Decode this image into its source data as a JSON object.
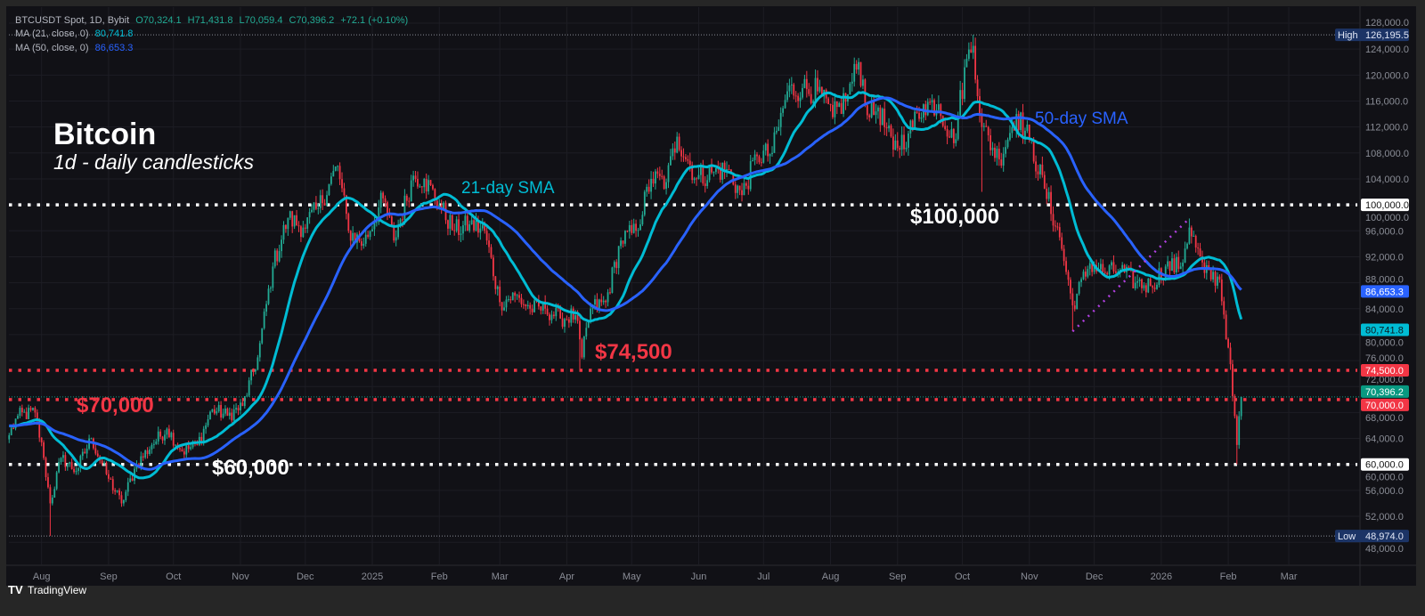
{
  "legend": {
    "symbol": "BTCUSDT Spot, 1D, Bybit",
    "open": "O70,324.1",
    "high": "H71,431.8",
    "low": "L70,059.4",
    "close": "C70,396.2",
    "change": "+72.1 (+0.10%)",
    "ma21_label": "MA (21, close, 0)",
    "ma21_value": "80,741.8",
    "ma50_label": "MA (50, close, 0)",
    "ma50_value": "86,653.3"
  },
  "footer": {
    "brand": "TradingView"
  },
  "colors": {
    "background": "#111116",
    "up": "#22ab94",
    "down": "#f23645",
    "ma21": "#00bcd4",
    "ma50": "#2962ff",
    "support_white": "#ffffff",
    "support_red": "#f23645",
    "trendline": "#9c27b0"
  },
  "chart_data": {
    "type": "candlestick",
    "title": "Bitcoin",
    "subtitle": "1d - daily candlesticks",
    "ylim": [
      46000,
      130000
    ],
    "y_ticks": [
      "128,000.0",
      "124,000.0",
      "120,000.0",
      "116,000.0",
      "112,000.0",
      "108,000.0",
      "104,000.0",
      "100,000.0",
      "96,000.0",
      "92,000.0",
      "88,000.0",
      "84,000.0",
      "80,000.0",
      "76,000.0",
      "72,000.0",
      "68,000.0",
      "64,000.0",
      "60,000.0",
      "56,000.0",
      "52,000.0",
      "48,000.0"
    ],
    "x_ticks": [
      {
        "label": "Aug",
        "date": "2024-08-01"
      },
      {
        "label": "Sep",
        "date": "2024-09-01"
      },
      {
        "label": "Oct",
        "date": "2024-10-01"
      },
      {
        "label": "Nov",
        "date": "2024-11-01"
      },
      {
        "label": "Dec",
        "date": "2024-12-01"
      },
      {
        "label": "2025",
        "date": "2025-01-01",
        "bold": true
      },
      {
        "label": "Feb",
        "date": "2025-02-01"
      },
      {
        "label": "Mar",
        "date": "2025-03-01"
      },
      {
        "label": "Apr",
        "date": "2025-04-01"
      },
      {
        "label": "May",
        "date": "2025-05-01"
      },
      {
        "label": "Jun",
        "date": "2025-06-01"
      },
      {
        "label": "Jul",
        "date": "2025-07-01"
      },
      {
        "label": "Aug",
        "date": "2025-08-01"
      },
      {
        "label": "Sep",
        "date": "2025-09-01"
      },
      {
        "label": "Oct",
        "date": "2025-10-01"
      },
      {
        "label": "Nov",
        "date": "2025-11-01"
      },
      {
        "label": "Dec",
        "date": "2025-12-01"
      },
      {
        "label": "2026",
        "date": "2026-01-01",
        "bold": true
      },
      {
        "label": "Feb",
        "date": "2026-02-01"
      },
      {
        "label": "Mar",
        "date": "2026-03-01"
      }
    ],
    "closes": [
      [
        "2024-07-17",
        64500
      ],
      [
        "2024-07-21",
        67500
      ],
      [
        "2024-07-29",
        68000
      ],
      [
        "2024-08-02",
        61000
      ],
      [
        "2024-08-05",
        54000
      ],
      [
        "2024-08-10",
        61000
      ],
      [
        "2024-08-17",
        59000
      ],
      [
        "2024-08-24",
        64000
      ],
      [
        "2024-08-31",
        58500
      ],
      [
        "2024-09-07",
        54000
      ],
      [
        "2024-09-14",
        60000
      ],
      [
        "2024-09-21",
        63000
      ],
      [
        "2024-09-28",
        65500
      ],
      [
        "2024-10-05",
        62000
      ],
      [
        "2024-10-12",
        63000
      ],
      [
        "2024-10-19",
        68500
      ],
      [
        "2024-10-26",
        67500
      ],
      [
        "2024-11-02",
        69000
      ],
      [
        "2024-11-09",
        76500
      ],
      [
        "2024-11-16",
        90500
      ],
      [
        "2024-11-23",
        98000
      ],
      [
        "2024-11-30",
        96500
      ],
      [
        "2024-12-07",
        99500
      ],
      [
        "2024-12-16",
        106000
      ],
      [
        "2024-12-21",
        96000
      ],
      [
        "2024-12-28",
        94000
      ],
      [
        "2025-01-06",
        101000
      ],
      [
        "2025-01-11",
        94500
      ],
      [
        "2025-01-20",
        104500
      ],
      [
        "2025-01-25",
        104000
      ],
      [
        "2025-02-01",
        100000
      ],
      [
        "2025-02-08",
        96000
      ],
      [
        "2025-02-15",
        97000
      ],
      [
        "2025-02-22",
        96000
      ],
      [
        "2025-03-01",
        85000
      ],
      [
        "2025-03-08",
        86000
      ],
      [
        "2025-03-15",
        84000
      ],
      [
        "2025-03-22",
        84000
      ],
      [
        "2025-03-29",
        82500
      ],
      [
        "2025-04-05",
        83000
      ],
      [
        "2025-04-08",
        76500
      ],
      [
        "2025-04-12",
        84000
      ],
      [
        "2025-04-19",
        85000
      ],
      [
        "2025-04-26",
        94500
      ],
      [
        "2025-05-03",
        96000
      ],
      [
        "2025-05-10",
        104000
      ],
      [
        "2025-05-17",
        103500
      ],
      [
        "2025-05-22",
        110500
      ],
      [
        "2025-05-31",
        104000
      ],
      [
        "2025-06-07",
        105000
      ],
      [
        "2025-06-14",
        105500
      ],
      [
        "2025-06-21",
        101500
      ],
      [
        "2025-06-28",
        107500
      ],
      [
        "2025-07-05",
        108000
      ],
      [
        "2025-07-12",
        117500
      ],
      [
        "2025-07-19",
        118000
      ],
      [
        "2025-07-26",
        117500
      ],
      [
        "2025-08-02",
        113500
      ],
      [
        "2025-08-09",
        117000
      ],
      [
        "2025-08-14",
        122000
      ],
      [
        "2025-08-19",
        113500
      ],
      [
        "2025-08-23",
        115000
      ],
      [
        "2025-08-30",
        108500
      ],
      [
        "2025-09-06",
        111000
      ],
      [
        "2025-09-13",
        115500
      ],
      [
        "2025-09-20",
        115500
      ],
      [
        "2025-09-27",
        109500
      ],
      [
        "2025-10-03",
        122500
      ],
      [
        "2025-10-06",
        124500
      ],
      [
        "2025-10-10",
        112000
      ],
      [
        "2025-10-18",
        107000
      ],
      [
        "2025-10-26",
        114000
      ],
      [
        "2025-11-01",
        110000
      ],
      [
        "2025-11-08",
        102500
      ],
      [
        "2025-11-15",
        95000
      ],
      [
        "2025-11-21",
        84500
      ],
      [
        "2025-11-29",
        91000
      ],
      [
        "2025-12-06",
        89500
      ],
      [
        "2025-12-13",
        90000
      ],
      [
        "2025-12-20",
        88000
      ],
      [
        "2025-12-27",
        87500
      ],
      [
        "2026-01-03",
        90500
      ],
      [
        "2026-01-10",
        90500
      ],
      [
        "2026-01-14",
        96500
      ],
      [
        "2026-01-21",
        89500
      ],
      [
        "2026-01-28",
        88500
      ],
      [
        "2026-02-01",
        78000
      ],
      [
        "2026-02-05",
        63000
      ],
      [
        "2026-02-07",
        70396.2
      ]
    ],
    "wick_extremes": [
      {
        "date": "2024-08-05",
        "low": 48974.0
      },
      {
        "date": "2025-04-07",
        "low": 74500
      },
      {
        "date": "2025-10-06",
        "high": 126195.5
      },
      {
        "date": "2025-10-10",
        "low": 102000
      },
      {
        "date": "2025-11-21",
        "low": 80500
      },
      {
        "date": "2026-01-14",
        "high": 97900
      },
      {
        "date": "2026-02-05",
        "low": 60000
      }
    ],
    "series": [
      {
        "name": "21-day SMA",
        "period": 21
      },
      {
        "name": "50-day SMA",
        "period": 50
      }
    ],
    "levels": [
      {
        "price": 100000,
        "label": "$100,000",
        "axis": "100,000.0",
        "color": "white"
      },
      {
        "price": 74500,
        "label": "$74,500",
        "axis": "74,500.0",
        "color": "red"
      },
      {
        "price": 70000,
        "label": "$70,000",
        "axis": "70,000.0",
        "color": "red"
      },
      {
        "price": 60000,
        "label": "$60,000",
        "axis": "60,000.0",
        "color": "white"
      }
    ],
    "trendline": {
      "from": [
        "2025-11-21",
        80500
      ],
      "to": [
        "2026-01-14",
        97900
      ]
    },
    "high_marker": {
      "label": "High",
      "value": "126,195.5",
      "price": 126195.5
    },
    "low_marker": {
      "label": "Low",
      "value": "48,974.0",
      "price": 48974.0
    },
    "price_badges": [
      {
        "value": "86,653.3",
        "price": 86653.3,
        "color": "#2962ff",
        "text": "#ffffff"
      },
      {
        "value": "80,741.8",
        "price": 80741.8,
        "color": "#00bcd4",
        "text": "#0b1a22"
      },
      {
        "value": "70,396.2",
        "price": 70396.2,
        "color": "#089981",
        "text": "#ffffff"
      }
    ],
    "annotations": {
      "ma21": "21-day SMA",
      "ma50": "50-day SMA"
    },
    "grid": true
  }
}
